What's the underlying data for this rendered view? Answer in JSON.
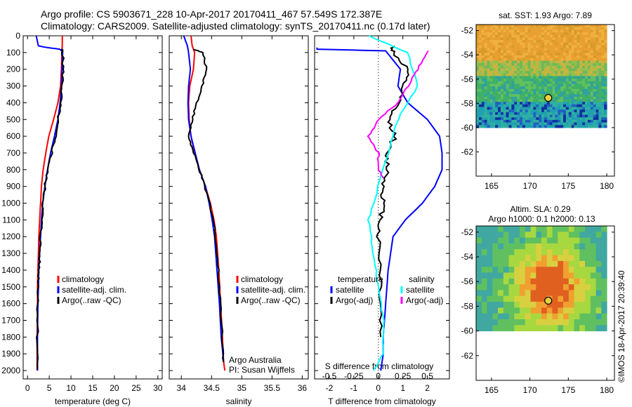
{
  "header": {
    "line1": "Argo profile: CS 5903671_228 10-Apr-2017 20170411_467 57.549S 172.387E",
    "line2": "Climatology: CARS2009. Satellite-adjusted climatology: synTS_20170411.nc (0.17d later)"
  },
  "colors": {
    "climatology": "#ff0000",
    "satellite": "#0000ff",
    "argo": "#000000",
    "sal_sat": "#00ffff",
    "sal_argo": "#ff00ff"
  },
  "chart_data": [
    {
      "type": "line",
      "id": "temperature",
      "xlabel": "temperature (deg C)",
      "ylabel": "",
      "xlim": [
        -1,
        31
      ],
      "ylim": [
        2050,
        0
      ],
      "xticks": [
        0,
        5,
        10,
        15,
        20,
        25,
        30
      ],
      "yticks": [
        0,
        100,
        200,
        300,
        400,
        500,
        600,
        700,
        800,
        900,
        1000,
        1100,
        1200,
        1300,
        1400,
        1500,
        1600,
        1700,
        1800,
        1900,
        2000
      ],
      "legend": [
        "climatology",
        "satellite-adj. clim.",
        "Argo(..raw -QC)"
      ],
      "series": [
        {
          "name": "climatology",
          "color": "#ff0000",
          "x": [
            8,
            8,
            7.9,
            7.8,
            7.6,
            7.0,
            6.0,
            4.9,
            4.2,
            3.6,
            3.2,
            3.0,
            2.8,
            2.6,
            2.5,
            2.4,
            2.3,
            2.3,
            2.2,
            2.2
          ],
          "y": [
            0,
            50,
            100,
            200,
            300,
            400,
            500,
            600,
            700,
            800,
            900,
            1000,
            1100,
            1200,
            1300,
            1400,
            1500,
            1600,
            1800,
            2000
          ]
        },
        {
          "name": "satellite-adj. clim.",
          "color": "#0000ff",
          "x": [
            2,
            2.5,
            4,
            7.4,
            8.1,
            8.0,
            7.8,
            7.5,
            7.0,
            6.2,
            5.3,
            4.6,
            4.0,
            3.5,
            3.2,
            3.0,
            2.8,
            2.6,
            2.5,
            2.4,
            2.3,
            2.3
          ],
          "y": [
            0,
            60,
            68,
            80,
            95,
            150,
            300,
            400,
            500,
            600,
            700,
            800,
            900,
            1000,
            1100,
            1200,
            1300,
            1400,
            1500,
            1600,
            1800,
            2000
          ]
        },
        {
          "name": "Argo(..raw -QC)",
          "color": "#000000",
          "x": [
            7.8,
            8.1,
            8.2,
            8.0,
            7.6,
            7.0,
            6.4,
            5.6,
            4.6,
            4.0,
            3.6,
            3.3,
            3.0,
            2.8,
            2.6,
            2.5,
            2.4,
            2.3,
            2.3
          ],
          "y": [
            80,
            100,
            200,
            300,
            400,
            500,
            600,
            700,
            800,
            900,
            1000,
            1100,
            1200,
            1300,
            1400,
            1500,
            1600,
            1800,
            1990
          ]
        }
      ]
    },
    {
      "type": "line",
      "id": "salinity",
      "xlabel": "salinity",
      "ylabel": "",
      "xlim": [
        33.8,
        36.1
      ],
      "ylim": [
        2050,
        0
      ],
      "xticks": [
        34,
        34.5,
        35,
        35.5,
        36
      ],
      "legend": [
        "climatology",
        "satellite-adj. clim.",
        "Argo(..raw -QC)"
      ],
      "annotations": [
        "Argo Australia",
        "PI: Susan Wijffels"
      ],
      "series": [
        {
          "name": "climatology",
          "color": "#ff0000",
          "x": [
            34.16,
            34.18,
            34.22,
            34.2,
            34.14,
            34.12,
            34.13,
            34.16,
            34.22,
            34.3,
            34.4,
            34.48,
            34.54,
            34.58,
            34.62,
            34.65,
            34.68,
            34.7,
            34.72
          ],
          "y": [
            0,
            60,
            100,
            200,
            300,
            400,
            500,
            600,
            700,
            800,
            900,
            1000,
            1100,
            1200,
            1400,
            1600,
            1800,
            1950,
            2000
          ]
        },
        {
          "name": "satellite-adj. clim.",
          "color": "#0000ff",
          "x": [
            34.04,
            34.1,
            34.12,
            34.15,
            34.12,
            34.11,
            34.12,
            34.16,
            34.23,
            34.3,
            34.4,
            34.46,
            34.51,
            34.55,
            34.59,
            34.63,
            34.66,
            34.7
          ],
          "y": [
            0,
            60,
            100,
            200,
            300,
            400,
            500,
            600,
            700,
            800,
            900,
            1000,
            1100,
            1200,
            1400,
            1600,
            1800,
            1950
          ]
        },
        {
          "name": "Argo(..raw -QC)",
          "color": "#000000",
          "x": [
            34.2,
            34.35,
            34.42,
            34.35,
            34.26,
            34.18,
            34.12,
            34.2,
            34.3,
            34.38,
            34.47,
            34.53,
            34.57,
            34.61,
            34.65,
            34.68,
            34.7
          ],
          "y": [
            80,
            100,
            200,
            300,
            400,
            500,
            600,
            700,
            800,
            900,
            1000,
            1100,
            1200,
            1400,
            1600,
            1800,
            1950
          ]
        }
      ]
    },
    {
      "type": "line",
      "id": "difference",
      "xlabel": "T difference from climatology",
      "xlabel_top": "S difference from climatology",
      "xlim": [
        -2.6,
        2.9
      ],
      "ylim": [
        2050,
        0
      ],
      "xticks": [
        -2,
        -1,
        0,
        1,
        2
      ],
      "xticks_top": [
        -0.5,
        -0.25,
        0,
        0.25,
        0.5
      ],
      "legend_left_title": "temperature",
      "legend_right_title": "salinity",
      "legend": [
        "satellite",
        "Argo(-adj)",
        "satellite",
        "Argo(-adj)"
      ],
      "series": [
        {
          "name": "temperature satellite",
          "color": "#0000ff",
          "x": [
            -2.5,
            -2.5,
            0.3,
            0.9,
            0.8,
            1.2,
            2.0,
            2.5,
            2.6,
            2.6,
            2.3,
            1.8,
            1.1,
            0.6,
            0.4,
            0.3,
            0.2,
            0.2,
            0.1
          ],
          "y": [
            70,
            80,
            90,
            200,
            300,
            400,
            500,
            600,
            700,
            800,
            900,
            1000,
            1100,
            1200,
            1400,
            1600,
            1800,
            1900,
            2000
          ]
        },
        {
          "name": "temperature Argo(-adj)",
          "color": "#000000",
          "x": [
            0.6,
            0.6,
            1.2,
            1.0,
            0.8,
            0.4,
            0.7,
            0.3,
            0.4,
            0.2,
            0.2,
            0.1,
            0.0,
            0.1,
            0.1,
            0.1
          ],
          "y": [
            60,
            100,
            200,
            300,
            400,
            500,
            600,
            700,
            800,
            900,
            1000,
            1100,
            1200,
            1400,
            1600,
            1800
          ]
        },
        {
          "name": "salinity satellite",
          "color": "#00ffff",
          "x": [
            -0.1,
            0.3,
            0.4,
            0.2,
            0.1,
            0.0,
            -0.1,
            -0.05,
            0.0,
            0.05,
            0.05,
            -0.05
          ],
          "y": [
            0,
            100,
            300,
            500,
            700,
            900,
            1100,
            1300,
            1500,
            1700,
            1900,
            2000
          ]
        },
        {
          "name": "salinity Argo(-adj)",
          "color": "#ff00ff",
          "x": [
            0.5,
            0.4,
            0.3,
            0.2,
            0.0,
            -0.1,
            0.0,
            0.0,
            0.05
          ],
          "y": [
            90,
            200,
            300,
            400,
            500,
            600,
            700,
            800,
            850
          ]
        }
      ]
    },
    {
      "type": "heatmap",
      "id": "sst_map",
      "title": "sat. SST: 1.93 Argo: 7.89",
      "xlim": [
        163,
        181
      ],
      "ylim": [
        -64,
        -51.5
      ],
      "xticks": [
        165,
        170,
        175,
        180
      ],
      "yticks": [
        -52,
        -54,
        -56,
        -58,
        -60,
        -62
      ],
      "data_extent": {
        "lon": [
          163,
          180
        ],
        "lat": [
          -60,
          -51.5
        ]
      },
      "marker": {
        "lon": 172.387,
        "lat": -57.549
      }
    },
    {
      "type": "heatmap",
      "id": "sla_map",
      "title": "Altim. SLA: 0.29",
      "subtitle": "Argo h1000: 0.1 h2000: 0.13",
      "xlim": [
        163,
        181
      ],
      "ylim": [
        -64,
        -51.5
      ],
      "xticks": [
        165,
        170,
        175,
        180
      ],
      "yticks": [
        -52,
        -54,
        -56,
        -58,
        -60,
        -62
      ],
      "data_extent": {
        "lon": [
          163,
          180
        ],
        "lat": [
          -60,
          -51.5
        ]
      },
      "marker": {
        "lon": 172.387,
        "lat": -57.549
      }
    }
  ],
  "credit": "©IMOS 18-Apr-2017 20:39:40"
}
